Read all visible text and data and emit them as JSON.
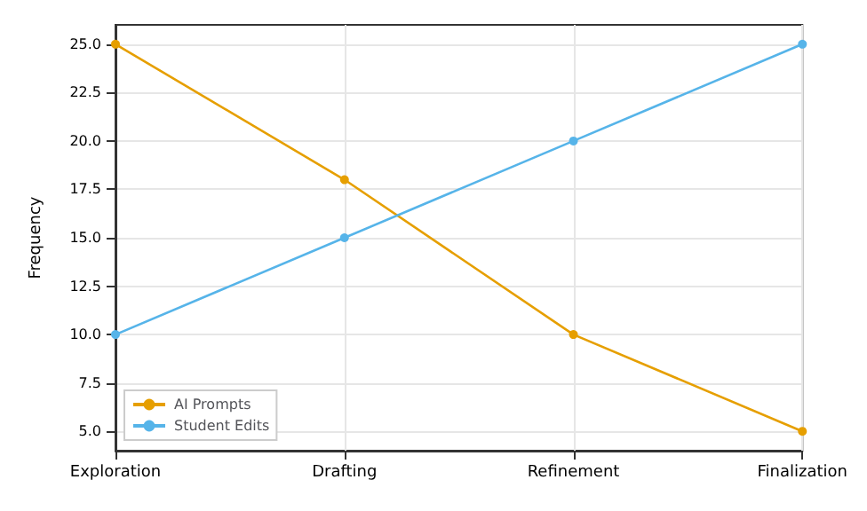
{
  "chart_data": {
    "type": "line",
    "ylabel": "Frequency",
    "categories": [
      "Exploration",
      "Drafting",
      "Refinement",
      "Finalization"
    ],
    "series": [
      {
        "name": "AI Prompts",
        "color": "#e69f00",
        "values": [
          25,
          18,
          10,
          5
        ]
      },
      {
        "name": "Student Edits",
        "color": "#56b4e9",
        "values": [
          10,
          15,
          20,
          25
        ]
      }
    ],
    "ylim": [
      4,
      26
    ],
    "yticks": [
      {
        "value": 5,
        "label": "5.0"
      },
      {
        "value": 7.5,
        "label": "7.5"
      },
      {
        "value": 10,
        "label": "10.0"
      },
      {
        "value": 12.5,
        "label": "12.5"
      },
      {
        "value": 15,
        "label": "15.0"
      },
      {
        "value": 17.5,
        "label": "17.5"
      },
      {
        "value": 20,
        "label": "20.0"
      },
      {
        "value": 22.5,
        "label": "22.5"
      },
      {
        "value": 25,
        "label": "25.0"
      }
    ],
    "grid": true,
    "legend": "bottom left",
    "marker": "circle",
    "line_style": "solid"
  }
}
